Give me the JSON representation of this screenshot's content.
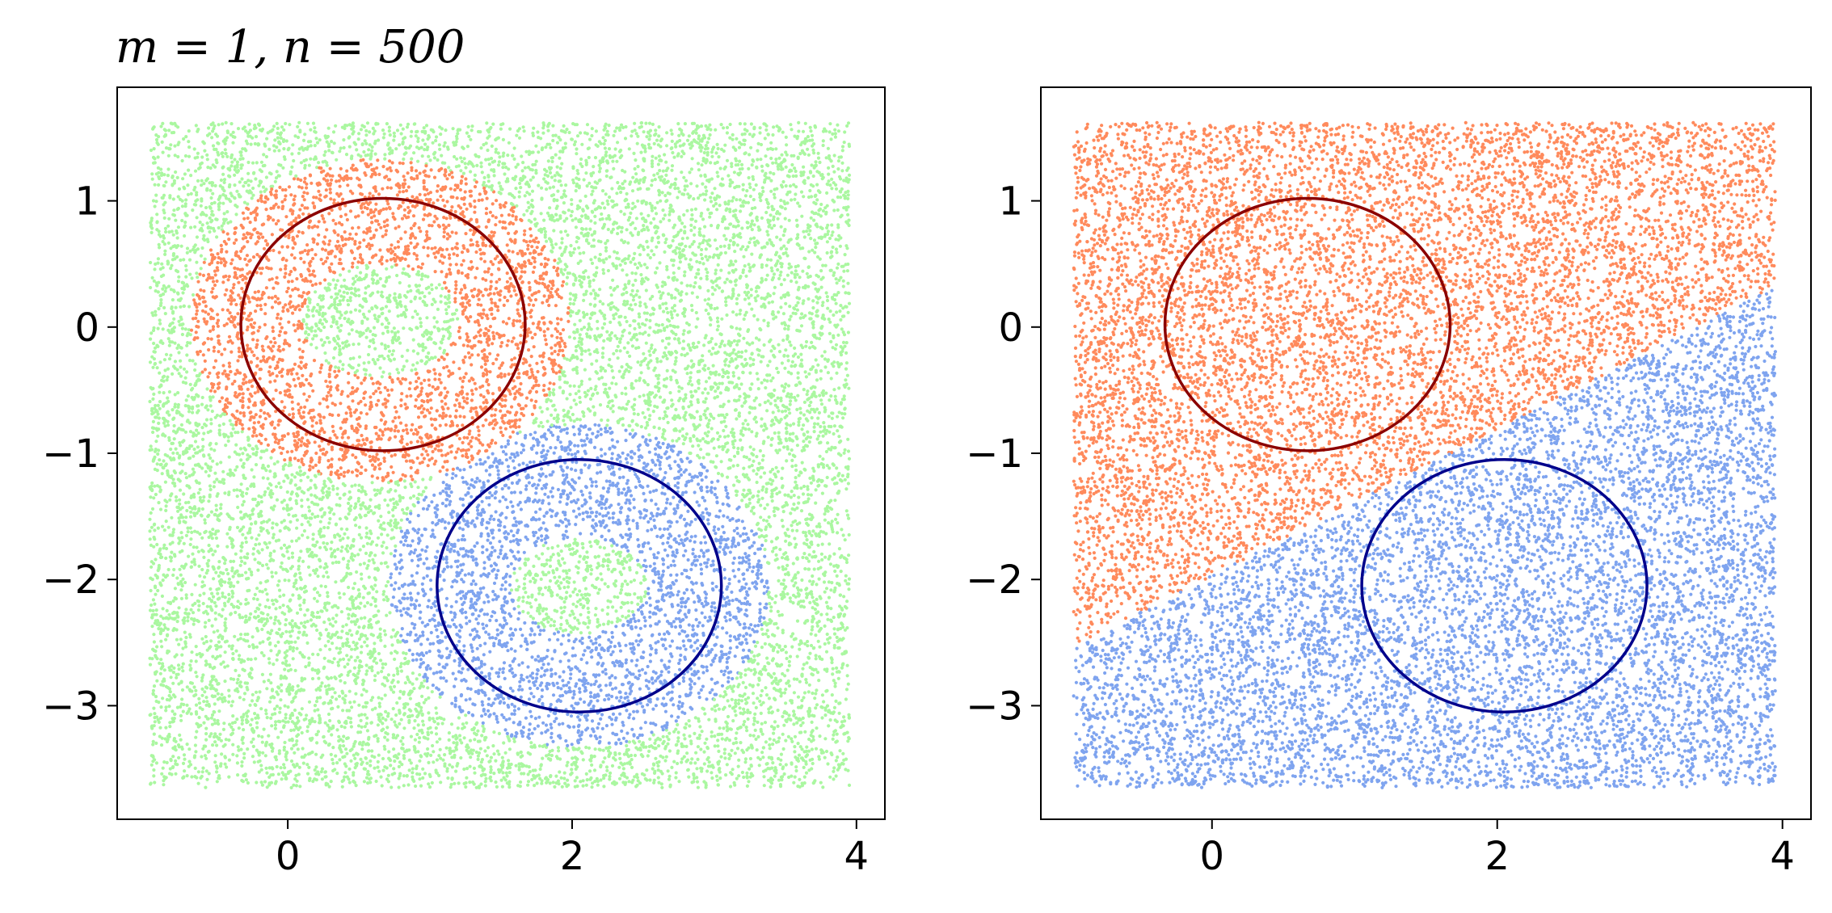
{
  "colors": {
    "background_class": "#aaf7a0",
    "class_red": "#ff8a5c",
    "class_blue": "#7fa4ef",
    "circle_red": "#8b0000",
    "circle_blue": "#00008b",
    "axes": "#000000"
  },
  "chart_data": [
    {
      "type": "scatter",
      "title": "m = 1, n = 500",
      "xlim": [
        -1.2,
        4.2
      ],
      "ylim": [
        -3.9,
        1.9
      ],
      "xticks": [
        0,
        2,
        4
      ],
      "yticks": [
        1,
        0,
        -1,
        -2,
        -3
      ],
      "xtick_labels": [
        "0",
        "2",
        "4"
      ],
      "ytick_labels": [
        "1",
        "0",
        "−1",
        "−2",
        "−3"
      ],
      "sample_region": {
        "x": [
          -0.97,
          3.95
        ],
        "y": [
          -3.65,
          1.62
        ]
      },
      "regions": [
        {
          "class": "red",
          "shape": "annulus",
          "center": [
            0.65,
            0.05
          ],
          "inner_radius": [
            0.55,
            0.45
          ],
          "outer_radius": [
            1.33,
            1.28
          ]
        },
        {
          "class": "blue",
          "shape": "annulus",
          "center": [
            2.05,
            -2.05
          ],
          "inner_radius": [
            0.48,
            0.38
          ],
          "outer_radius": [
            1.33,
            1.28
          ]
        },
        {
          "class": "background",
          "shape": "rest"
        }
      ],
      "circles": [
        {
          "class": "red",
          "center": [
            0.67,
            0.02
          ],
          "radius": [
            1.0,
            1.0
          ]
        },
        {
          "class": "blue",
          "center": [
            2.05,
            -2.05
          ],
          "radius": [
            1.0,
            1.0
          ]
        }
      ],
      "grid": false,
      "legend": "none"
    },
    {
      "type": "scatter",
      "title": "",
      "xlim": [
        -1.2,
        4.2
      ],
      "ylim": [
        -3.9,
        1.9
      ],
      "xticks": [
        0,
        2,
        4
      ],
      "yticks": [
        1,
        0,
        -1,
        -2,
        -3
      ],
      "xtick_labels": [
        "0",
        "2",
        "4"
      ],
      "ytick_labels": [
        "1",
        "0",
        "−1",
        "−2",
        "−3"
      ],
      "sample_region": {
        "x": [
          -0.97,
          3.95
        ],
        "y": [
          -3.65,
          1.62
        ]
      },
      "regions": [
        {
          "class": "red",
          "shape": "above-line",
          "line": {
            "x0": -1.0,
            "y0": -2.55,
            "x1": 3.95,
            "y1": 0.32
          }
        },
        {
          "class": "blue",
          "shape": "below-line",
          "line": {
            "x0": -1.0,
            "y0": -2.55,
            "x1": 3.95,
            "y1": 0.32
          }
        }
      ],
      "circles": [
        {
          "class": "red",
          "center": [
            0.67,
            0.02
          ],
          "radius": [
            1.0,
            1.0
          ]
        },
        {
          "class": "blue",
          "center": [
            2.05,
            -2.05
          ],
          "radius": [
            1.0,
            1.0
          ]
        }
      ],
      "grid": false,
      "legend": "none"
    }
  ]
}
